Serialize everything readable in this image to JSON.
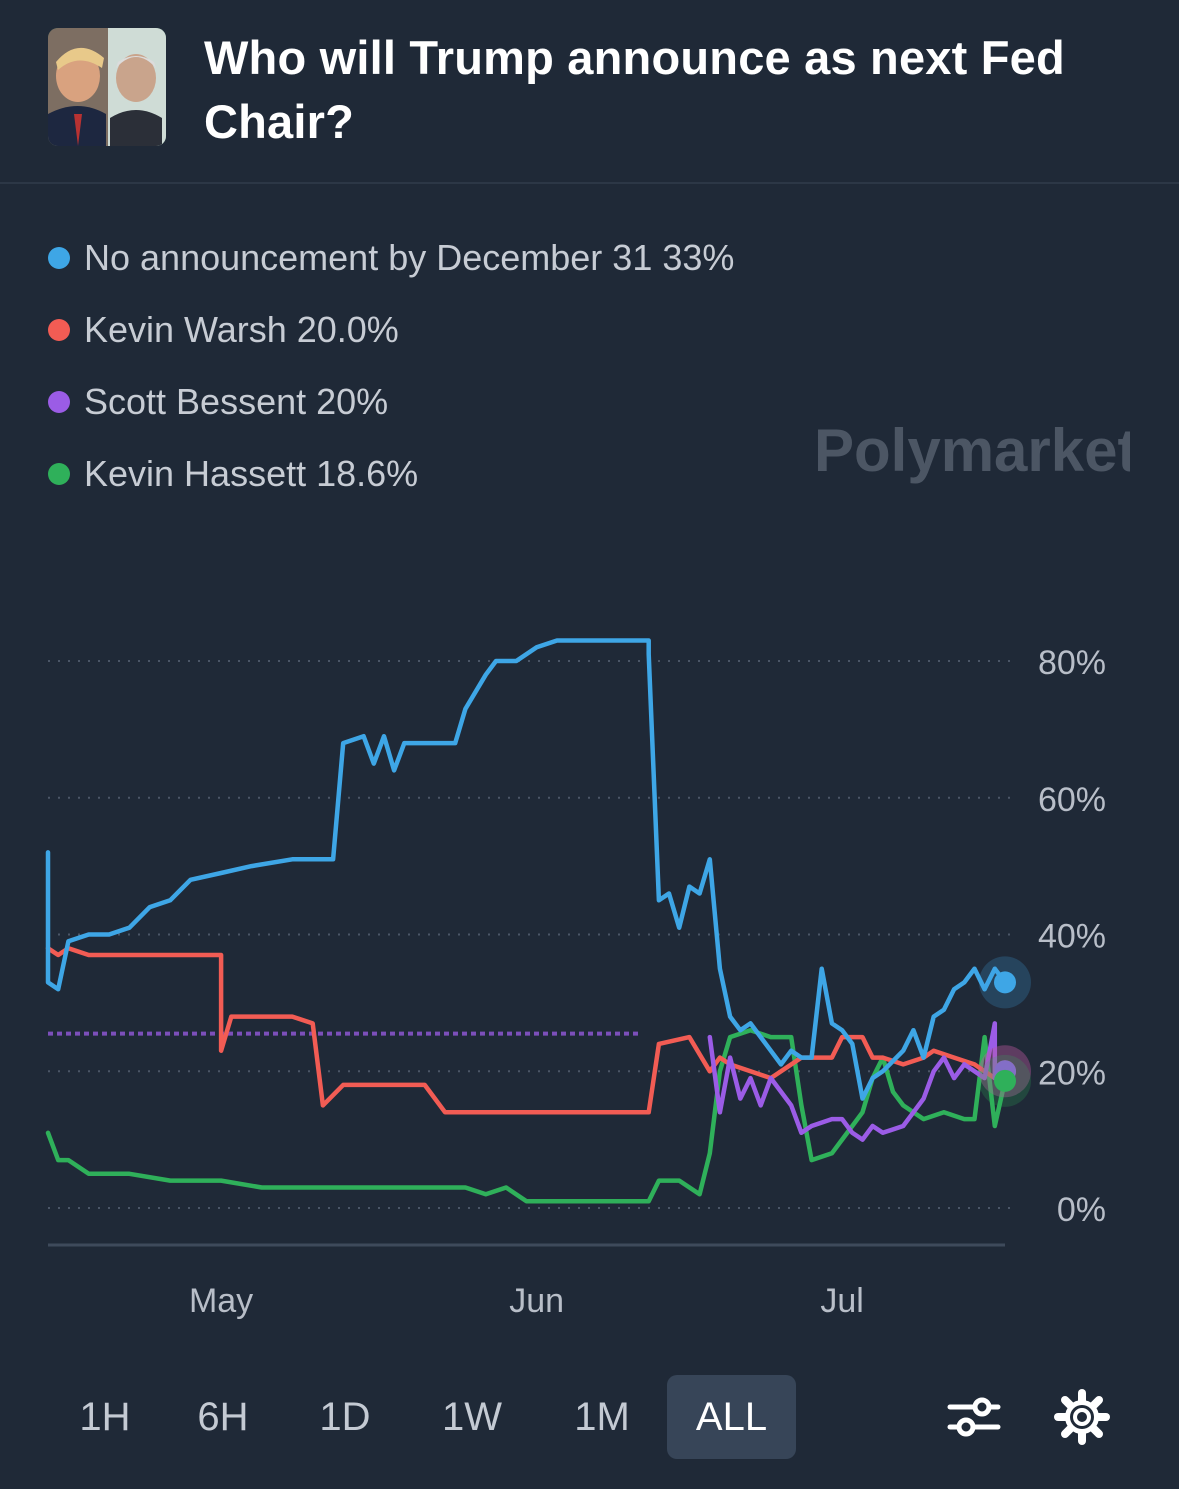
{
  "header": {
    "title": "Who will Trump announce as next Fed Chair?"
  },
  "legend": [
    {
      "label": "No announcement by December 31 33%",
      "color": "#3ea6e6"
    },
    {
      "label": "Kevin Warsh 20.0%",
      "color": "#f25c54"
    },
    {
      "label": "Scott Bessent 20%",
      "color": "#9b5ce6"
    },
    {
      "label": "Kevin Hassett 18.6%",
      "color": "#2fb05a"
    }
  ],
  "watermark": {
    "text": "Polymarket"
  },
  "chart_data": {
    "type": "line",
    "x_range": [
      "2025-04-14",
      "2025-07-17"
    ],
    "ylim": [
      0,
      85
    ],
    "y_ticks": [
      {
        "value": 0,
        "label": "0%"
      },
      {
        "value": 20,
        "label": "20%"
      },
      {
        "value": 40,
        "label": "40%"
      },
      {
        "value": 60,
        "label": "60%"
      },
      {
        "value": 80,
        "label": "80%"
      }
    ],
    "x_ticks": [
      {
        "date": "2025-05-01",
        "label": "May"
      },
      {
        "date": "2025-06-01",
        "label": "Jun"
      },
      {
        "date": "2025-07-01",
        "label": "Jul"
      }
    ],
    "grid": true,
    "reference_line": {
      "value": 25.5,
      "color": "#9b5ce6"
    },
    "series": [
      {
        "name": "No announcement by December 31",
        "color": "#3ea6e6",
        "points": [
          [
            "2025-04-14",
            52
          ],
          [
            "2025-04-14",
            33
          ],
          [
            "2025-04-15",
            32
          ],
          [
            "2025-04-16",
            39
          ],
          [
            "2025-04-18",
            40
          ],
          [
            "2025-04-20",
            40
          ],
          [
            "2025-04-22",
            41
          ],
          [
            "2025-04-24",
            44
          ],
          [
            "2025-04-26",
            45
          ],
          [
            "2025-04-28",
            48
          ],
          [
            "2025-05-01",
            49
          ],
          [
            "2025-05-04",
            50
          ],
          [
            "2025-05-08",
            51
          ],
          [
            "2025-05-12",
            51
          ],
          [
            "2025-05-13",
            68
          ],
          [
            "2025-05-15",
            69
          ],
          [
            "2025-05-16",
            65
          ],
          [
            "2025-05-17",
            69
          ],
          [
            "2025-05-18",
            64
          ],
          [
            "2025-05-19",
            68
          ],
          [
            "2025-05-21",
            68
          ],
          [
            "2025-05-24",
            68
          ],
          [
            "2025-05-25",
            73
          ],
          [
            "2025-05-27",
            78
          ],
          [
            "2025-05-28",
            80
          ],
          [
            "2025-05-30",
            80
          ],
          [
            "2025-06-01",
            82
          ],
          [
            "2025-06-03",
            83
          ],
          [
            "2025-06-12",
            83
          ],
          [
            "2025-06-12",
            81
          ],
          [
            "2025-06-13",
            45
          ],
          [
            "2025-06-14",
            46
          ],
          [
            "2025-06-15",
            41
          ],
          [
            "2025-06-16",
            47
          ],
          [
            "2025-06-17",
            46
          ],
          [
            "2025-06-18",
            51
          ],
          [
            "2025-06-19",
            35
          ],
          [
            "2025-06-20",
            28
          ],
          [
            "2025-06-21",
            26
          ],
          [
            "2025-06-22",
            27
          ],
          [
            "2025-06-23",
            25
          ],
          [
            "2025-06-24",
            23
          ],
          [
            "2025-06-25",
            21
          ],
          [
            "2025-06-26",
            23
          ],
          [
            "2025-06-27",
            22
          ],
          [
            "2025-06-28",
            22
          ],
          [
            "2025-06-29",
            35
          ],
          [
            "2025-06-30",
            27
          ],
          [
            "2025-07-01",
            26
          ],
          [
            "2025-07-02",
            24
          ],
          [
            "2025-07-03",
            16
          ],
          [
            "2025-07-04",
            19
          ],
          [
            "2025-07-05",
            20
          ],
          [
            "2025-07-07",
            23
          ],
          [
            "2025-07-08",
            26
          ],
          [
            "2025-07-09",
            22
          ],
          [
            "2025-07-10",
            28
          ],
          [
            "2025-07-11",
            29
          ],
          [
            "2025-07-12",
            32
          ],
          [
            "2025-07-13",
            33
          ],
          [
            "2025-07-14",
            35
          ],
          [
            "2025-07-15",
            32
          ],
          [
            "2025-07-16",
            35
          ],
          [
            "2025-07-17",
            33
          ]
        ]
      },
      {
        "name": "Kevin Warsh",
        "color": "#f25c54",
        "points": [
          [
            "2025-04-14",
            38
          ],
          [
            "2025-04-15",
            37
          ],
          [
            "2025-04-16",
            38
          ],
          [
            "2025-04-18",
            37
          ],
          [
            "2025-04-22",
            37
          ],
          [
            "2025-04-26",
            37
          ],
          [
            "2025-04-28",
            37
          ],
          [
            "2025-05-01",
            37
          ],
          [
            "2025-05-01",
            23
          ],
          [
            "2025-05-02",
            28
          ],
          [
            "2025-05-04",
            28
          ],
          [
            "2025-05-08",
            28
          ],
          [
            "2025-05-10",
            27
          ],
          [
            "2025-05-11",
            15
          ],
          [
            "2025-05-13",
            18
          ],
          [
            "2025-05-16",
            18
          ],
          [
            "2025-05-21",
            18
          ],
          [
            "2025-05-23",
            14
          ],
          [
            "2025-05-27",
            14
          ],
          [
            "2025-06-01",
            14
          ],
          [
            "2025-06-05",
            14
          ],
          [
            "2025-06-09",
            14
          ],
          [
            "2025-06-12",
            14
          ],
          [
            "2025-06-13",
            24
          ],
          [
            "2025-06-16",
            25
          ],
          [
            "2025-06-18",
            20
          ],
          [
            "2025-06-19",
            22
          ],
          [
            "2025-06-20",
            21
          ],
          [
            "2025-06-22",
            20
          ],
          [
            "2025-06-24",
            19
          ],
          [
            "2025-06-27",
            22
          ],
          [
            "2025-06-30",
            22
          ],
          [
            "2025-07-01",
            25
          ],
          [
            "2025-07-03",
            25
          ],
          [
            "2025-07-04",
            22
          ],
          [
            "2025-07-05",
            22
          ],
          [
            "2025-07-07",
            21
          ],
          [
            "2025-07-09",
            22
          ],
          [
            "2025-07-10",
            23
          ],
          [
            "2025-07-12",
            22
          ],
          [
            "2025-07-14",
            21
          ],
          [
            "2025-07-15",
            20
          ],
          [
            "2025-07-16",
            19
          ],
          [
            "2025-07-17",
            20
          ]
        ]
      },
      {
        "name": "Scott Bessent",
        "color": "#9b5ce6",
        "points": [
          [
            "2025-06-18",
            25
          ],
          [
            "2025-06-19",
            14
          ],
          [
            "2025-06-20",
            22
          ],
          [
            "2025-06-21",
            16
          ],
          [
            "2025-06-22",
            19
          ],
          [
            "2025-06-23",
            15
          ],
          [
            "2025-06-24",
            19
          ],
          [
            "2025-06-26",
            15
          ],
          [
            "2025-06-27",
            11
          ],
          [
            "2025-06-28",
            12
          ],
          [
            "2025-06-30",
            13
          ],
          [
            "2025-07-01",
            13
          ],
          [
            "2025-07-02",
            11
          ],
          [
            "2025-07-03",
            10
          ],
          [
            "2025-07-04",
            12
          ],
          [
            "2025-07-05",
            11
          ],
          [
            "2025-07-07",
            12
          ],
          [
            "2025-07-08",
            14
          ],
          [
            "2025-07-09",
            16
          ],
          [
            "2025-07-10",
            20
          ],
          [
            "2025-07-11",
            22
          ],
          [
            "2025-07-12",
            19
          ],
          [
            "2025-07-13",
            21
          ],
          [
            "2025-07-14",
            20
          ],
          [
            "2025-07-15",
            19
          ],
          [
            "2025-07-16",
            27
          ],
          [
            "2025-07-16",
            19
          ],
          [
            "2025-07-17",
            20
          ]
        ]
      },
      {
        "name": "Kevin Hassett",
        "color": "#2fb05a",
        "points": [
          [
            "2025-04-14",
            11
          ],
          [
            "2025-04-15",
            7
          ],
          [
            "2025-04-16",
            7
          ],
          [
            "2025-04-18",
            5
          ],
          [
            "2025-04-22",
            5
          ],
          [
            "2025-04-26",
            4
          ],
          [
            "2025-05-01",
            4
          ],
          [
            "2025-05-05",
            3
          ],
          [
            "2025-05-10",
            3
          ],
          [
            "2025-05-15",
            3
          ],
          [
            "2025-05-20",
            3
          ],
          [
            "2025-05-25",
            3
          ],
          [
            "2025-05-27",
            2
          ],
          [
            "2025-05-29",
            3
          ],
          [
            "2025-05-31",
            1
          ],
          [
            "2025-06-03",
            1
          ],
          [
            "2025-06-08",
            1
          ],
          [
            "2025-06-12",
            1
          ],
          [
            "2025-06-13",
            4
          ],
          [
            "2025-06-15",
            4
          ],
          [
            "2025-06-17",
            2
          ],
          [
            "2025-06-18",
            8
          ],
          [
            "2025-06-19",
            20
          ],
          [
            "2025-06-20",
            25
          ],
          [
            "2025-06-22",
            26
          ],
          [
            "2025-06-24",
            25
          ],
          [
            "2025-06-26",
            25
          ],
          [
            "2025-06-27",
            15
          ],
          [
            "2025-06-28",
            7
          ],
          [
            "2025-06-30",
            8
          ],
          [
            "2025-07-01",
            10
          ],
          [
            "2025-07-02",
            12
          ],
          [
            "2025-07-03",
            14
          ],
          [
            "2025-07-04",
            19
          ],
          [
            "2025-07-05",
            22
          ],
          [
            "2025-07-06",
            17
          ],
          [
            "2025-07-07",
            15
          ],
          [
            "2025-07-09",
            13
          ],
          [
            "2025-07-11",
            14
          ],
          [
            "2025-07-13",
            13
          ],
          [
            "2025-07-14",
            13
          ],
          [
            "2025-07-15",
            25
          ],
          [
            "2025-07-16",
            12
          ],
          [
            "2025-07-17",
            18.6
          ]
        ]
      }
    ]
  },
  "controls": {
    "ranges": [
      {
        "label": "1H",
        "active": false
      },
      {
        "label": "6H",
        "active": false
      },
      {
        "label": "1D",
        "active": false
      },
      {
        "label": "1W",
        "active": false
      },
      {
        "label": "1M",
        "active": false
      },
      {
        "label": "ALL",
        "active": true
      }
    ],
    "icons": [
      "sliders-icon",
      "gear-icon"
    ]
  }
}
